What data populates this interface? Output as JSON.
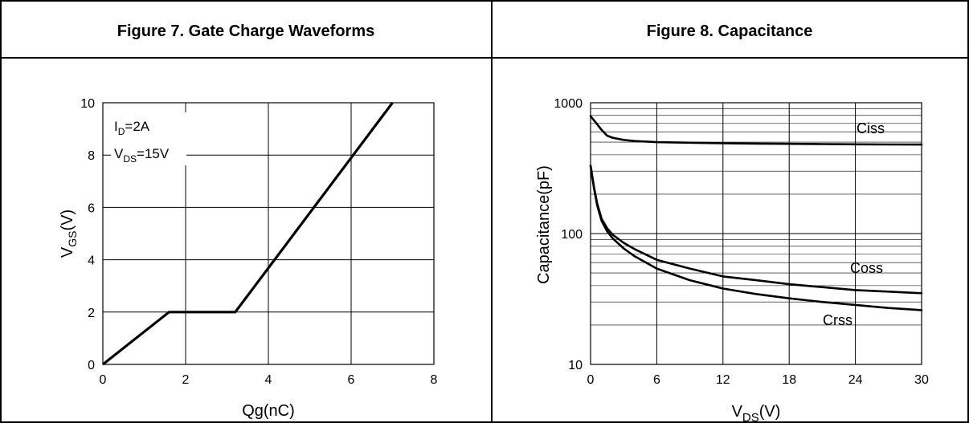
{
  "figures": [
    {
      "header": "Figure 7. Gate Charge Waveforms"
    },
    {
      "header": "Figure 8. Capacitance"
    }
  ],
  "chart_data": [
    {
      "type": "line",
      "title": "Figure 7. Gate Charge Waveforms",
      "xlabel": "Qg(nC)",
      "ylabel_main": "V",
      "ylabel_sub": "GS",
      "ylabel_unit": "(V)",
      "xlim": [
        0,
        8
      ],
      "ylim": [
        0,
        10
      ],
      "x_ticks": [
        0,
        2,
        4,
        6,
        8
      ],
      "y_ticks": [
        0,
        2,
        4,
        6,
        8,
        10
      ],
      "grid": true,
      "annotations": [
        {
          "main": "I",
          "sub": "D",
          "rest": "=2A"
        },
        {
          "main": "V",
          "sub": "DS",
          "rest": "=15V"
        }
      ],
      "series": [
        {
          "x": [
            0,
            1.6,
            3.2,
            7.0
          ],
          "y": [
            0,
            2,
            2,
            10
          ]
        }
      ]
    },
    {
      "type": "line",
      "title": "Figure 8. Capacitance",
      "xlabel_main": "V",
      "xlabel_sub": "DS",
      "xlabel_unit": "(V)",
      "ylabel": "Capacitance(pF)",
      "xlim": [
        0,
        30
      ],
      "ylim": [
        10,
        1000
      ],
      "y_scale": "log",
      "x_ticks": [
        0,
        6,
        12,
        18,
        24,
        30
      ],
      "y_ticks": [
        10,
        100,
        1000
      ],
      "grid": true,
      "series": [
        {
          "name": "Ciss",
          "x": [
            0,
            0.5,
            1,
            1.5,
            2,
            3,
            4,
            6,
            9,
            12,
            15,
            18,
            21,
            24,
            27,
            30
          ],
          "y": [
            790,
            700,
            620,
            560,
            540,
            520,
            510,
            500,
            495,
            490,
            487,
            485,
            483,
            481,
            480,
            479
          ]
        },
        {
          "name": "Coss",
          "x": [
            0,
            0.3,
            0.6,
            1,
            1.5,
            2,
            3,
            4,
            6,
            9,
            12,
            15,
            18,
            21,
            24,
            27,
            30
          ],
          "y": [
            330,
            230,
            170,
            130,
            110,
            98,
            85,
            76,
            63,
            54,
            47,
            44,
            41,
            39,
            37,
            36,
            35
          ]
        },
        {
          "name": "Crss",
          "x": [
            0,
            0.3,
            0.6,
            1,
            1.5,
            2,
            3,
            4,
            6,
            9,
            12,
            15,
            18,
            21,
            24,
            27,
            30
          ],
          "y": [
            330,
            225,
            165,
            125,
            104,
            92,
            77,
            67,
            54,
            44,
            38,
            34.5,
            32,
            30,
            28.5,
            27,
            26
          ]
        }
      ]
    }
  ]
}
